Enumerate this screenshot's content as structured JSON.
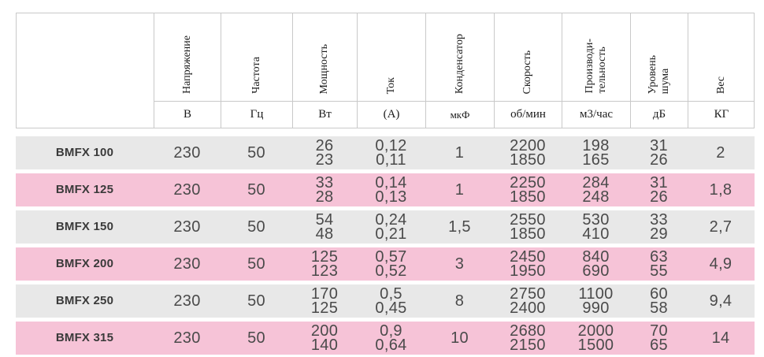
{
  "table": {
    "columns": [
      {
        "label": "",
        "unit": ""
      },
      {
        "label": "Напряжение",
        "unit": "В"
      },
      {
        "label": "Частота",
        "unit": "Гц"
      },
      {
        "label": "Мощность",
        "unit": "Вт"
      },
      {
        "label": "Ток",
        "unit": "(А)"
      },
      {
        "label": "Конденсатор",
        "unit": "мкФ"
      },
      {
        "label": "Скорость",
        "unit": "об/мин"
      },
      {
        "label": "Производи-\nтельность",
        "unit": "м3/час"
      },
      {
        "label": "Уровень\nшума",
        "unit": "дБ"
      },
      {
        "label": "Вес",
        "unit": "КГ"
      }
    ],
    "rows": [
      {
        "model": "BMFX 100",
        "cells": [
          "230",
          "50",
          "26\n23",
          "0,12\n0,11",
          "1",
          "2200\n1850",
          "198\n165",
          "31\n26",
          "2"
        ]
      },
      {
        "model": "BMFX 125",
        "cells": [
          "230",
          "50",
          "33\n28",
          "0,14\n0,13",
          "1",
          "2250\n1850",
          "284\n248",
          "31\n26",
          "1,8"
        ]
      },
      {
        "model": "BMFX 150",
        "cells": [
          "230",
          "50",
          "54\n48",
          "0,24\n0,21",
          "1,5",
          "2550\n1850",
          "530\n410",
          "33\n29",
          "2,7"
        ]
      },
      {
        "model": "BMFX 200",
        "cells": [
          "230",
          "50",
          "125\n123",
          "0,57\n0,52",
          "3",
          "2450\n1950",
          "840\n690",
          "63\n55",
          "4,9"
        ]
      },
      {
        "model": "BMFX 250",
        "cells": [
          "230",
          "50",
          "170\n125",
          "0,5\n0,45",
          "8",
          "2750\n2400",
          "1100\n990",
          "60\n58",
          "9,4"
        ]
      },
      {
        "model": "BMFX 315",
        "cells": [
          "230",
          "50",
          "200\n140",
          "0,9\n0,64",
          "10",
          "2680\n2150",
          "2000\n1500",
          "70\n65",
          "14"
        ]
      }
    ]
  },
  "colors": {
    "row_gray": "#e8e8e8",
    "row_pink": "#f6c3d7",
    "border": "#c9c9c9",
    "number_text": "#4a4a4a"
  }
}
